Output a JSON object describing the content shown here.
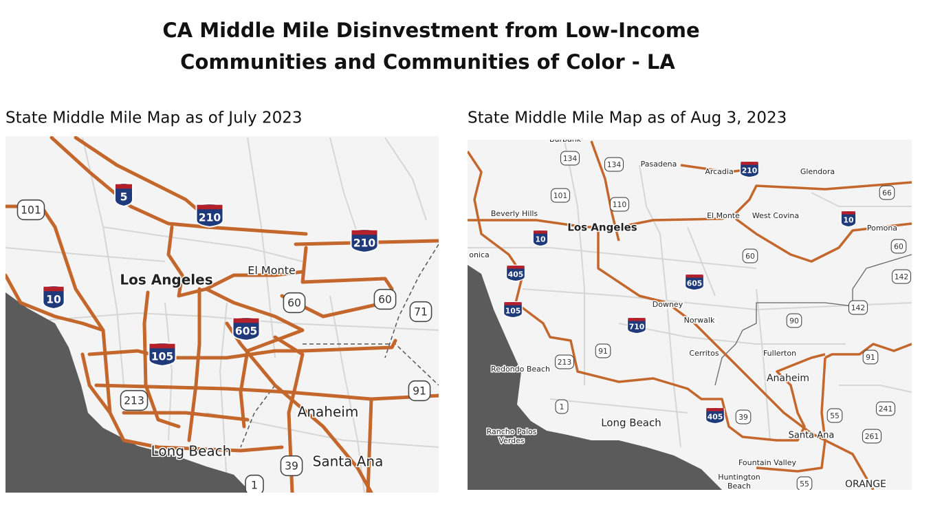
{
  "title_lines": [
    "CA Middle Mile Disinvestment from Low-Income",
    "Communities and Communities of Color - LA"
  ],
  "panels": [
    {
      "subtitle": "State Middle Mile Map as of July 2023",
      "places": [
        "Los Angeles",
        "El Monte",
        "Anaheim",
        "Long Beach",
        "Santa Ana"
      ],
      "shields": [
        "5",
        "210",
        "210",
        "10",
        "605",
        "105",
        "101",
        "60",
        "60",
        "71",
        "213",
        "91",
        "39",
        "1"
      ]
    },
    {
      "subtitle": "State Middle Mile Map as of Aug 3, 2023",
      "places": [
        "Burbank",
        "Pasadena",
        "Arcadia",
        "Glendora",
        "Beverly Hills",
        "Los Angeles",
        "El Monte",
        "West Covina",
        "Pomona",
        "onica",
        "Downey",
        "Norwalk",
        "Cerritos",
        "Fullerton",
        "Redondo Beach",
        "Anaheim",
        "Long Beach",
        "Santa Ana",
        "Rancho Palos",
        "Verdes",
        "Fountain Valley",
        "Huntington",
        "Beach",
        "ORANGE"
      ],
      "shields": [
        "210",
        "10",
        "10",
        "405",
        "605",
        "105",
        "710",
        "405",
        "134",
        "134",
        "101",
        "110",
        "66",
        "60",
        "60",
        "142",
        "142",
        "90",
        "91",
        "91",
        "213",
        "1",
        "39",
        "55",
        "241",
        "261",
        "55"
      ]
    }
  ]
}
